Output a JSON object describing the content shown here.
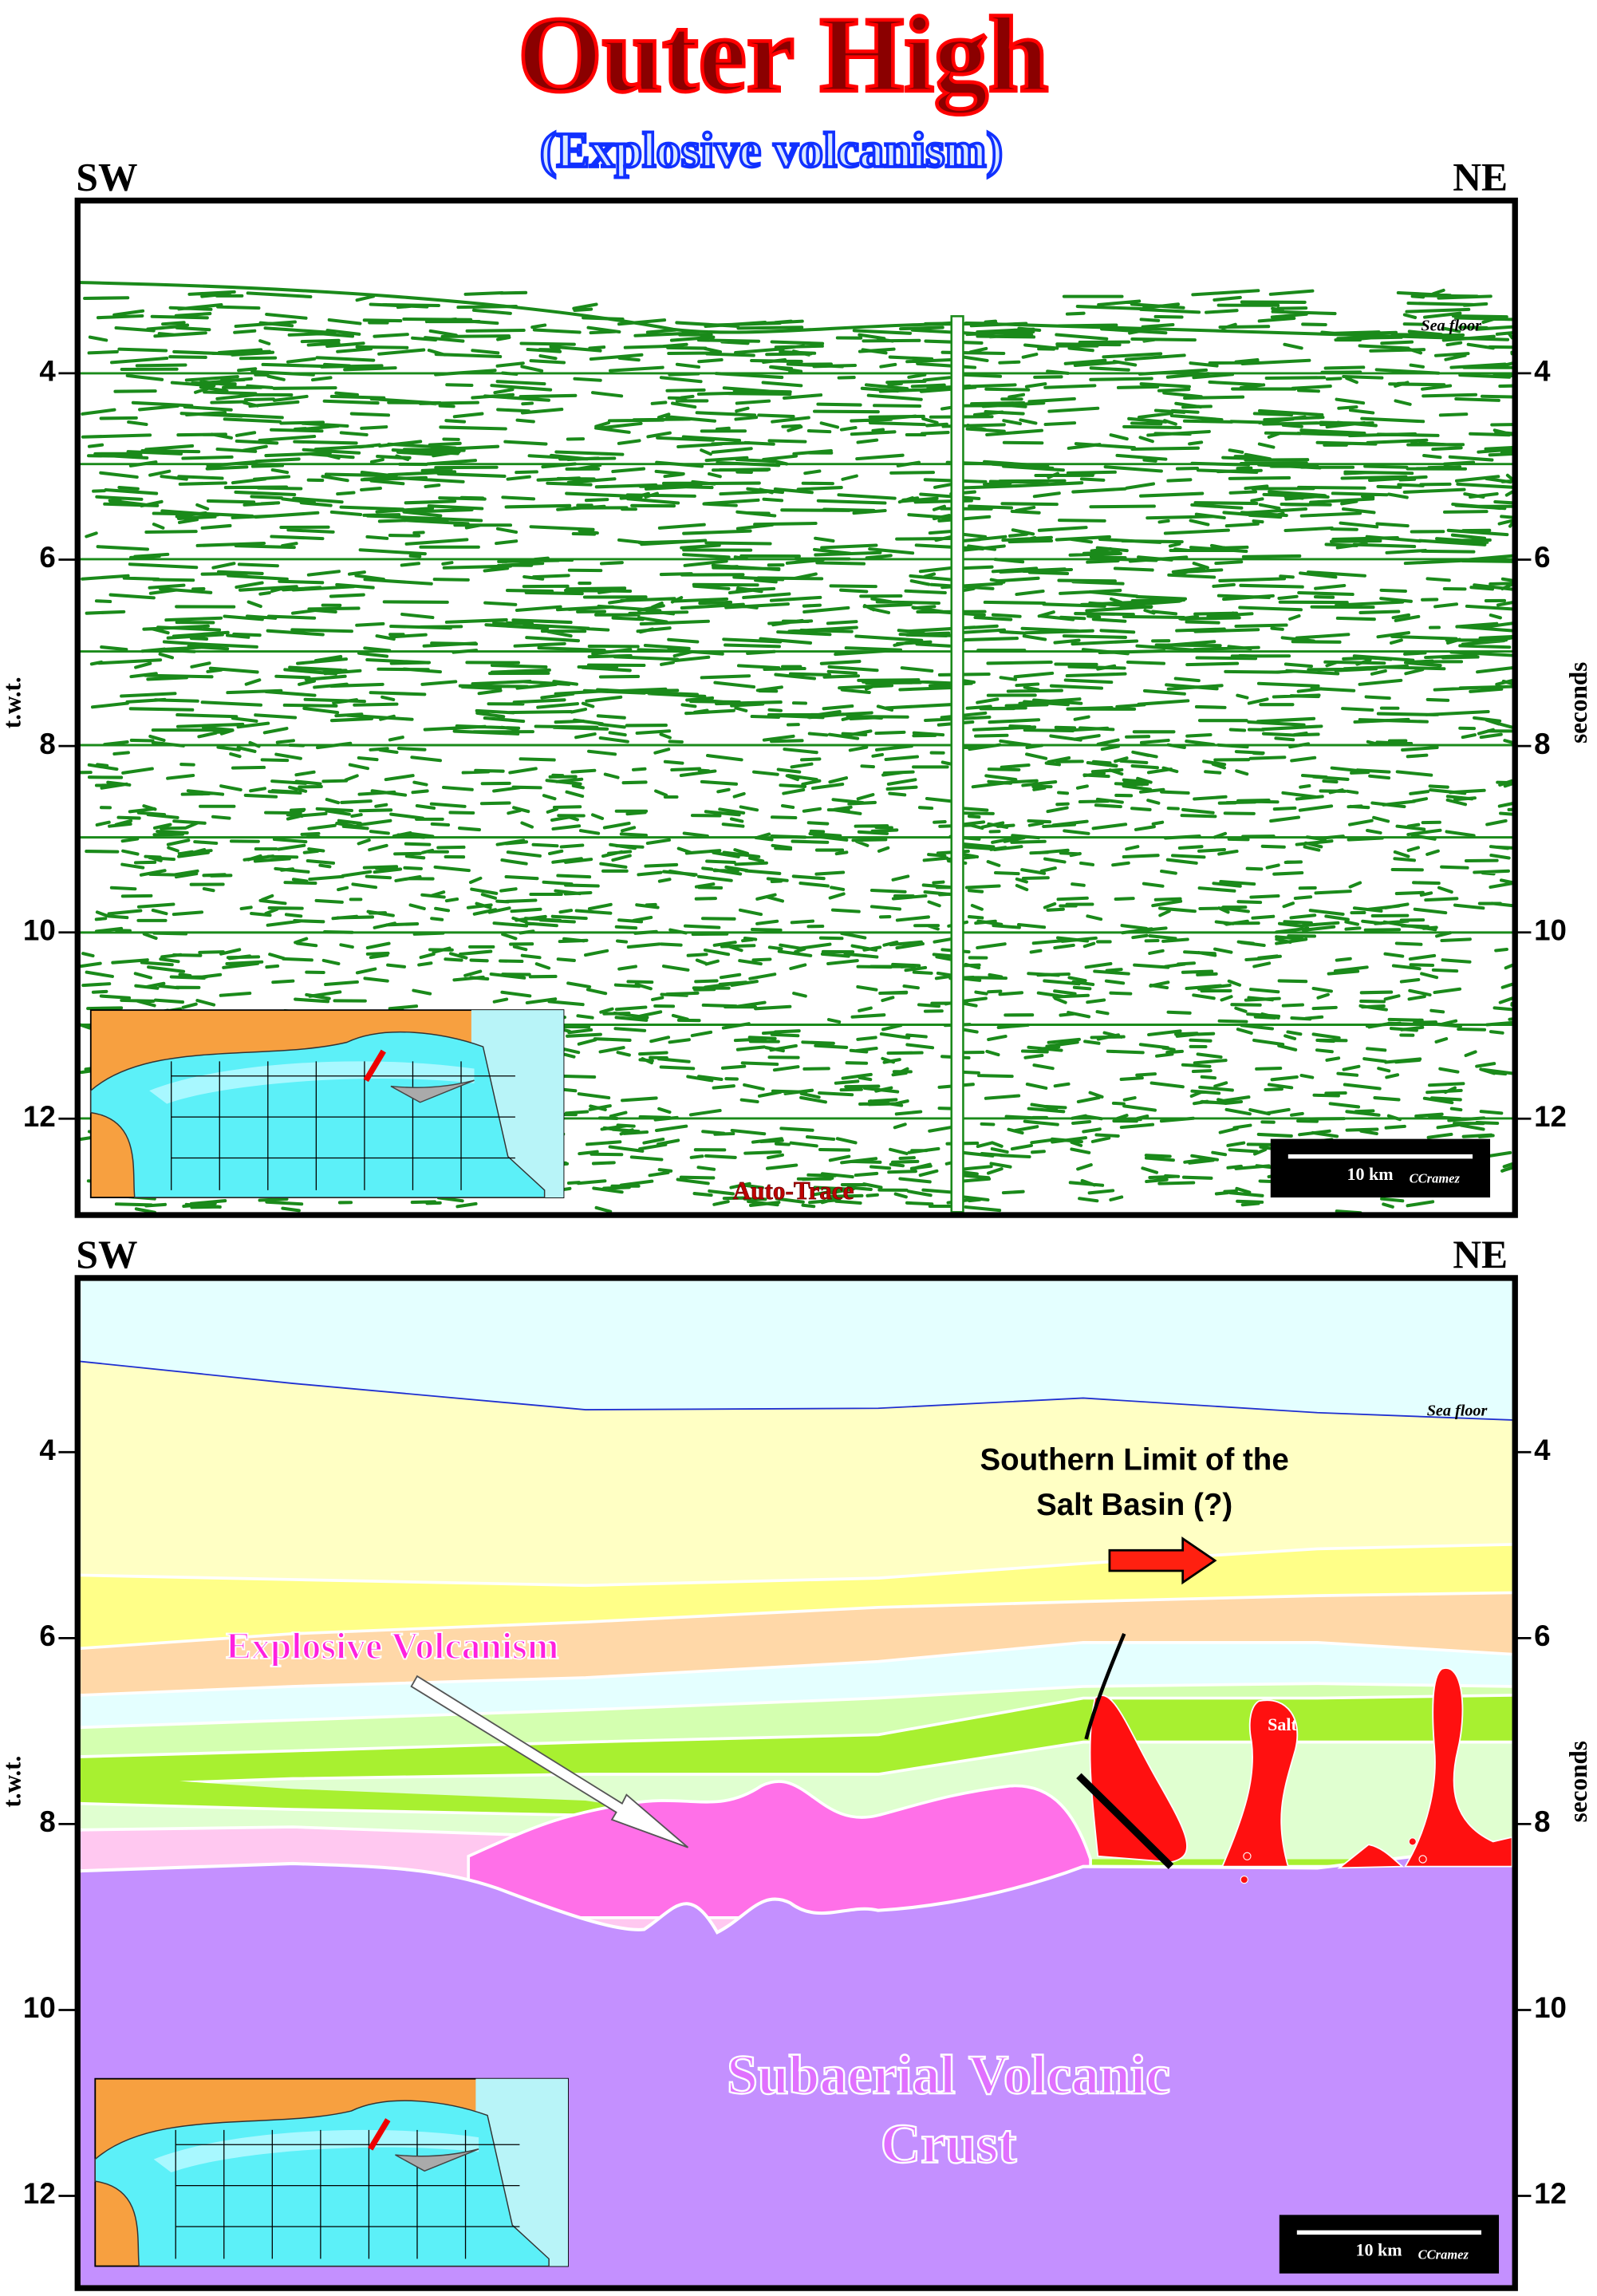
{
  "header": {
    "title": "Outer High",
    "subtitle": "(Explosive volcanism)"
  },
  "panels": [
    {
      "left_label": "SW",
      "right_label": "NE",
      "ticks": [
        4,
        6,
        8,
        10,
        12
      ],
      "left_axis_label": "t.w.t.",
      "right_axis_label": "seconds",
      "annotations": {
        "sea_floor": "Sea floor",
        "auto_trace": "Auto-Trace"
      },
      "scale_bar": {
        "label": "10 km",
        "credit": "CCramez"
      }
    },
    {
      "left_label": "SW",
      "right_label": "NE",
      "ticks": [
        4,
        6,
        8,
        10,
        12
      ],
      "left_axis_label": "t.w.t.",
      "right_axis_label": "seconds",
      "annotations": {
        "sea_floor": "Sea floor",
        "salt_limit": [
          "Southern Limit of the",
          "Salt Basin (?)"
        ],
        "volcanism": "Explosive Volcanism",
        "salt": "Salt",
        "crust": [
          "Subaerial Volcanic",
          "Crust"
        ]
      },
      "scale_bar": {
        "label": "10 km",
        "credit": "CCramez"
      }
    }
  ]
}
